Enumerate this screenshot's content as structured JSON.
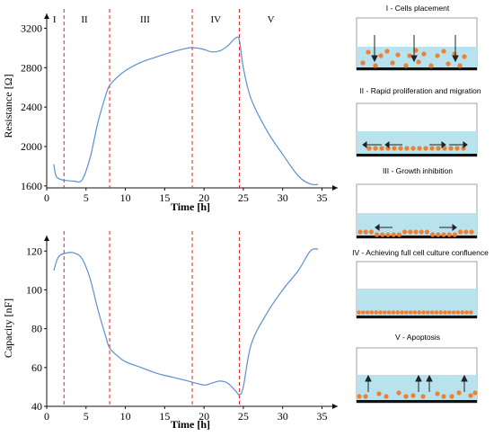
{
  "chart_data": [
    {
      "type": "line",
      "title": "",
      "xlabel": "Time [h]",
      "ylabel": "Resistance [Ω]",
      "xlim": [
        0,
        37
      ],
      "ylim": [
        1580,
        3350
      ],
      "xticks": [
        0,
        5,
        10,
        15,
        20,
        25,
        30,
        35
      ],
      "yticks": [
        1600,
        2000,
        2400,
        2800,
        3200
      ],
      "grid": false,
      "phase_lines": [
        2.2,
        8.0,
        18.5,
        24.5
      ],
      "phase_labels": [
        {
          "label": "I",
          "x": 1.0
        },
        {
          "label": "II",
          "x": 4.8
        },
        {
          "label": "III",
          "x": 12.5
        },
        {
          "label": "IV",
          "x": 21.5
        },
        {
          "label": "V",
          "x": 28.5
        }
      ],
      "series": [
        {
          "x": [
            0.9,
            1.2,
            1.8,
            2.5,
            3.5,
            4.5,
            5.5,
            6.5,
            7.5,
            8.0,
            9.0,
            10.0,
            12.0,
            14.0,
            16.0,
            18.0,
            19.0,
            20.0,
            21.0,
            22.0,
            23.0,
            24.0,
            24.5,
            25.0,
            26.0,
            28.0,
            30.0,
            32.0,
            33.5,
            34.5
          ],
          "y": [
            1820,
            1700,
            1665,
            1655,
            1648,
            1660,
            1880,
            2240,
            2520,
            2620,
            2705,
            2770,
            2855,
            2910,
            2960,
            3000,
            3000,
            2985,
            2960,
            2970,
            3020,
            3100,
            3080,
            2800,
            2480,
            2160,
            1920,
            1700,
            1620,
            1615
          ]
        }
      ]
    },
    {
      "type": "line",
      "title": "",
      "xlabel": "Time [h]",
      "ylabel": "Capacity [nF]",
      "xlim": [
        0,
        37
      ],
      "ylim": [
        40,
        128
      ],
      "xticks": [
        0,
        5,
        10,
        15,
        20,
        25,
        30,
        35
      ],
      "yticks": [
        40,
        60,
        80,
        100,
        120
      ],
      "grid": false,
      "phase_lines": [
        2.2,
        8.0,
        18.5,
        24.5
      ],
      "series": [
        {
          "x": [
            0.9,
            1.5,
            2.5,
            3.5,
            4.5,
            5.5,
            6.5,
            7.5,
            8.0,
            9.0,
            10.0,
            12.0,
            14.0,
            16.0,
            18.0,
            20.0,
            21.0,
            22.0,
            23.0,
            24.0,
            24.5,
            25.0,
            26.0,
            28.0,
            30.0,
            32.0,
            33.5,
            34.5
          ],
          "y": [
            110,
            117,
            119,
            119,
            116,
            106,
            90,
            76,
            70,
            66,
            63,
            60,
            57,
            55,
            53,
            51,
            52,
            53,
            52,
            48,
            46,
            50,
            72,
            88,
            100,
            110,
            120,
            121
          ]
        }
      ]
    }
  ],
  "panels": [
    {
      "label": "I - Cells placement"
    },
    {
      "label": "II - Rapid proliferation and migration"
    },
    {
      "label": "III - Growth inhibition"
    },
    {
      "label": "IV - Achieving full cell culture confluence"
    },
    {
      "label": "V - Apoptosis"
    }
  ],
  "colors": {
    "curve": "#5b8fd1",
    "phase_line": "#e8201e",
    "medium": "#b8e2ee",
    "cell": "#f08030",
    "base": "#111111"
  }
}
